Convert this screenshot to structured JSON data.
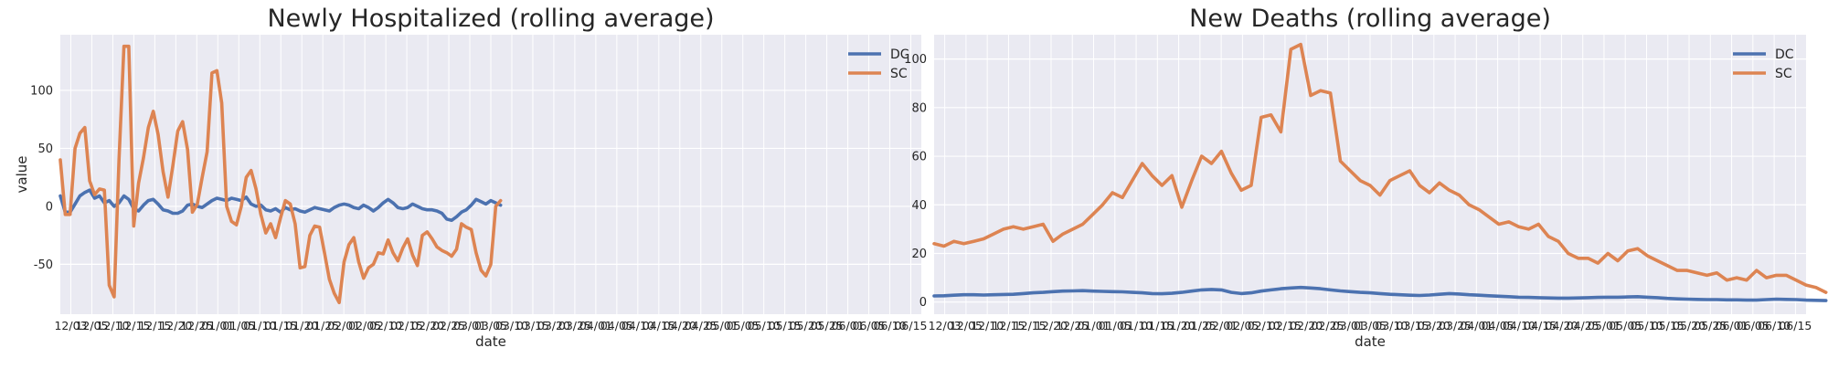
{
  "style": {
    "plot_background": "#EAEAF2",
    "grid_color": "#FFFFFF",
    "text_color": "#262626",
    "series_colors": {
      "DC": "#4C72B0",
      "SC": "#DD8452"
    }
  },
  "chart_data": [
    {
      "type": "line",
      "title": "Newly Hospitalized (rolling average)",
      "xlabel": "date",
      "ylabel": "value",
      "ylim": [
        -93,
        148
      ],
      "yticks": [
        -50,
        0,
        50,
        100
      ],
      "xlim": [
        0,
        176
      ],
      "grid": true,
      "legend": "top-right",
      "xtick_labels": [
        "12/03",
        "12/05",
        "12/10",
        "12/15",
        "12/15",
        "12/20",
        "12/25",
        "01/01",
        "01/05",
        "01/10",
        "01/15",
        "01/20",
        "01/25",
        "02/01",
        "02/05",
        "02/10",
        "02/15",
        "02/20",
        "02/25",
        "03/01",
        "03/05",
        "03/10",
        "03/15",
        "03/20",
        "03/25",
        "04/01",
        "04/05",
        "04/10",
        "04/15",
        "04/20",
        "04/25",
        "05/01",
        "05/05",
        "05/10",
        "05/15",
        "05/20",
        "05/25",
        "06/01",
        "06/05",
        "06/10",
        "06/15"
      ],
      "x": [
        0,
        1,
        2,
        3,
        4,
        5,
        6,
        7,
        8,
        9,
        10,
        11,
        12,
        13,
        14,
        15,
        16,
        17,
        18,
        19,
        20,
        21,
        22,
        23,
        24,
        25,
        26,
        27,
        28,
        29,
        30,
        31,
        32,
        33,
        34,
        35,
        36,
        37,
        38,
        39,
        40,
        41,
        42,
        43,
        44,
        45,
        46,
        47,
        48,
        49,
        50,
        51,
        52,
        53,
        54,
        55,
        56,
        57,
        58,
        59,
        60,
        61,
        62,
        63,
        64,
        65,
        66,
        67,
        68,
        69,
        70,
        71,
        72,
        73,
        74,
        75,
        76,
        77,
        78,
        79,
        80,
        81,
        82,
        83,
        84,
        85,
        86,
        87,
        88,
        89,
        90
      ],
      "series": [
        {
          "name": "DC",
          "values": [
            9,
            -5,
            -5,
            2,
            9,
            12,
            14,
            7,
            9,
            3,
            5,
            0,
            3,
            9,
            6,
            -2,
            -4,
            1,
            5,
            6,
            2,
            -3,
            -4,
            -6,
            -6,
            -4,
            1,
            2,
            0,
            -1,
            2,
            5,
            7,
            6,
            5,
            7,
            6,
            5,
            8,
            2,
            0,
            1,
            -3,
            -4,
            -2,
            -5,
            -1,
            -3,
            -2,
            -4,
            -5,
            -3,
            -1,
            -2,
            -3,
            -4,
            -1,
            1,
            2,
            1,
            -1,
            -2,
            1,
            -1,
            -4,
            -1,
            3,
            6,
            3,
            -1,
            -2,
            -1,
            2,
            0,
            -2,
            -3,
            -3,
            -4,
            -6,
            -11,
            -12,
            -9,
            -5,
            -3,
            1,
            6,
            4,
            2,
            5,
            3,
            1
          ]
        },
        {
          "name": "SC",
          "values": [
            40,
            -7,
            -7,
            50,
            63,
            68,
            22,
            10,
            15,
            14,
            -68,
            -78,
            40,
            138,
            138,
            -17,
            20,
            42,
            68,
            82,
            62,
            30,
            8,
            35,
            65,
            73,
            49,
            -5,
            2,
            25,
            47,
            115,
            117,
            89,
            0,
            -13,
            -16,
            0,
            25,
            31,
            15,
            -7,
            -23,
            -15,
            -27,
            -10,
            5,
            2,
            -15,
            -53,
            -52,
            -25,
            -17,
            -18,
            -40,
            -63,
            -75,
            -83,
            -48,
            -33,
            -27,
            -48,
            -62,
            -53,
            -50,
            -40,
            -41,
            -29,
            -40,
            -47,
            -36,
            -28,
            -42,
            -51,
            -25,
            -22,
            -28,
            -35,
            -38,
            -40,
            -43,
            -37,
            -15,
            -18,
            -20,
            -40,
            -55,
            -60,
            -50,
            0,
            5
          ]
        }
      ]
    },
    {
      "type": "line",
      "title": "New Deaths (rolling average)",
      "xlabel": "date",
      "ylabel": "",
      "ylim": [
        -5,
        110
      ],
      "yticks": [
        0,
        20,
        40,
        60,
        80,
        100
      ],
      "xlim": [
        0,
        176
      ],
      "grid": true,
      "legend": "top-right",
      "xtick_labels": [
        "12/03",
        "12/05",
        "12/10",
        "12/15",
        "12/15",
        "12/20",
        "12/25",
        "01/01",
        "01/05",
        "01/10",
        "01/15",
        "01/20",
        "01/25",
        "02/01",
        "02/05",
        "02/10",
        "02/15",
        "02/20",
        "02/25",
        "03/01",
        "03/05",
        "03/10",
        "03/15",
        "03/20",
        "03/25",
        "04/01",
        "04/05",
        "04/10",
        "04/15",
        "04/20",
        "04/25",
        "05/01",
        "05/05",
        "05/10",
        "05/15",
        "05/20",
        "05/25",
        "06/01",
        "06/05",
        "06/10",
        "06/15"
      ],
      "x": [
        0,
        2,
        4,
        6,
        8,
        10,
        12,
        14,
        16,
        18,
        20,
        22,
        24,
        26,
        28,
        30,
        32,
        34,
        36,
        38,
        40,
        42,
        44,
        46,
        48,
        50,
        52,
        54,
        56,
        58,
        60,
        62,
        64,
        66,
        68,
        70,
        72,
        74,
        76,
        78,
        80,
        82,
        84,
        86,
        88,
        90,
        92,
        94,
        96,
        98,
        100,
        102,
        104,
        106,
        108,
        110,
        112,
        114,
        116,
        118,
        120,
        122,
        124,
        126,
        128,
        130,
        132,
        134,
        136,
        138,
        140,
        142,
        144,
        146,
        148,
        150,
        152,
        154,
        156,
        158,
        160,
        162,
        164,
        166,
        168,
        170,
        172,
        174,
        176,
        178,
        180
      ],
      "series": [
        {
          "name": "DC",
          "values": [
            2.5,
            2.6,
            2.8,
            3.0,
            3.0,
            2.9,
            3.0,
            3.1,
            3.2,
            3.5,
            3.8,
            4.0,
            4.3,
            4.5,
            4.6,
            4.7,
            4.5,
            4.4,
            4.3,
            4.2,
            4.0,
            3.8,
            3.5,
            3.4,
            3.6,
            4.0,
            4.5,
            5.0,
            5.2,
            5.0,
            4.0,
            3.5,
            3.8,
            4.5,
            5.0,
            5.5,
            5.8,
            6.0,
            5.8,
            5.5,
            5.0,
            4.6,
            4.3,
            4.0,
            3.8,
            3.5,
            3.2,
            3.0,
            2.8,
            2.7,
            2.9,
            3.2,
            3.5,
            3.3,
            3.0,
            2.8,
            2.6,
            2.4,
            2.2,
            2.0,
            1.9,
            1.8,
            1.7,
            1.6,
            1.6,
            1.7,
            1.8,
            1.9,
            2.0,
            2.0,
            2.1,
            2.2,
            2.0,
            1.8,
            1.5,
            1.3,
            1.2,
            1.1,
            1.0,
            1.0,
            0.9,
            0.9,
            0.8,
            0.8,
            1.0,
            1.2,
            1.1,
            1.0,
            0.8,
            0.7,
            0.6
          ]
        },
        {
          "name": "SC",
          "values": [
            24,
            23,
            25,
            24,
            25,
            26,
            28,
            30,
            31,
            30,
            31,
            32,
            25,
            28,
            30,
            32,
            36,
            40,
            45,
            43,
            50,
            57,
            52,
            48,
            52,
            39,
            50,
            60,
            57,
            62,
            53,
            46,
            48,
            76,
            77,
            70,
            104,
            106,
            85,
            87,
            86,
            58,
            54,
            50,
            48,
            44,
            50,
            52,
            54,
            48,
            45,
            49,
            46,
            44,
            40,
            38,
            35,
            32,
            33,
            31,
            30,
            32,
            27,
            25,
            20,
            18,
            18,
            16,
            20,
            17,
            21,
            22,
            19,
            17,
            15,
            13,
            13,
            12,
            11,
            12,
            9,
            10,
            9,
            13,
            10,
            11,
            11,
            9,
            7,
            6,
            4
          ]
        }
      ]
    }
  ]
}
